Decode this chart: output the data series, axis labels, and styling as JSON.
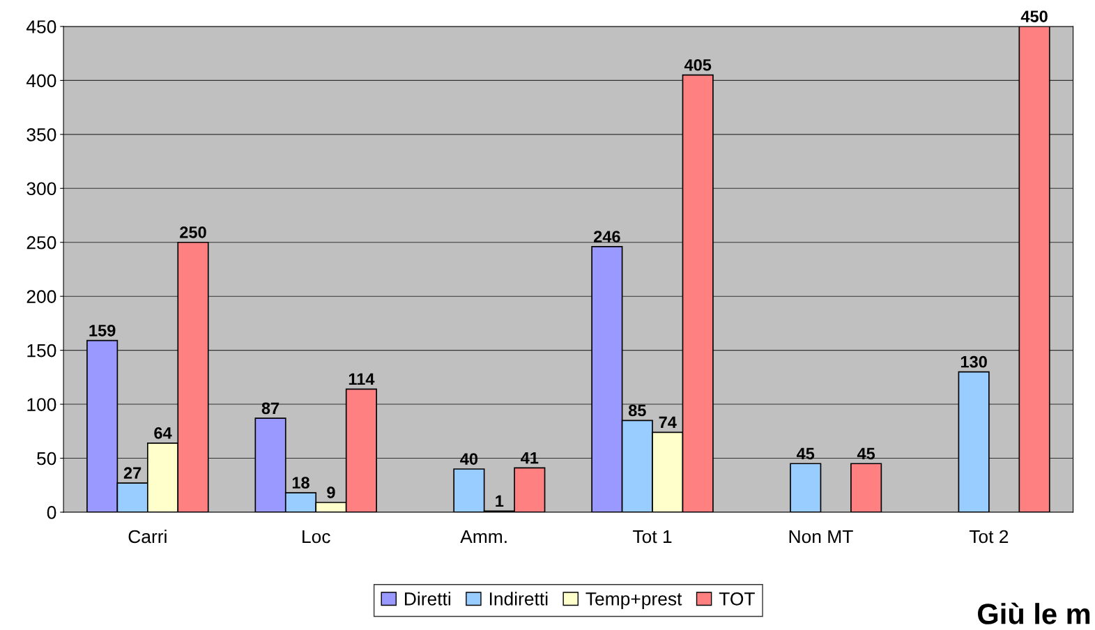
{
  "chart_data": {
    "type": "bar",
    "categories": [
      "Carri",
      "Loc",
      "Amm.",
      "Tot 1",
      "Non MT",
      "Tot 2"
    ],
    "series": [
      {
        "name": "Diretti",
        "color": "#9999ff",
        "values": [
          159,
          87,
          null,
          246,
          null,
          null
        ]
      },
      {
        "name": "Indiretti",
        "color": "#99ccff",
        "values": [
          27,
          18,
          40,
          85,
          45,
          130
        ]
      },
      {
        "name": "Temp+prest",
        "color": "#ffffcc",
        "values": [
          64,
          9,
          1,
          74,
          null,
          null
        ]
      },
      {
        "name": "TOT",
        "color": "#ff8080",
        "values": [
          250,
          114,
          41,
          405,
          45,
          450
        ]
      }
    ],
    "ylim": [
      0,
      450
    ],
    "yticks": [
      0,
      50,
      100,
      150,
      200,
      250,
      300,
      350,
      400,
      450
    ],
    "grid": "y",
    "legend": "bottom",
    "data_labels": true,
    "annotations": [
      "Giù le m"
    ]
  }
}
